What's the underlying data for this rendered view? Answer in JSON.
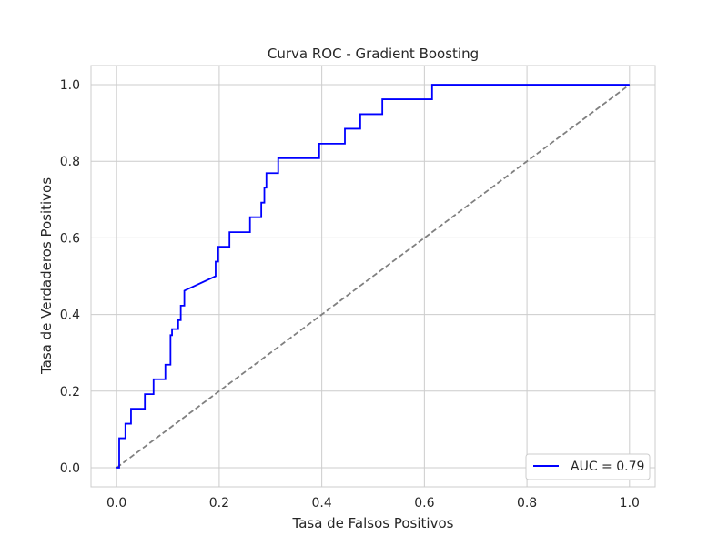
{
  "chart_data": {
    "type": "line",
    "title": "Curva ROC - Gradient Boosting",
    "xlabel": "Tasa de Falsos Positivos",
    "ylabel": "Tasa de Verdaderos Positivos",
    "xlim": [
      -0.05,
      1.05
    ],
    "ylim": [
      -0.05,
      1.05
    ],
    "xticks": [
      "0.0",
      "0.2",
      "0.4",
      "0.6",
      "0.8",
      "1.0"
    ],
    "yticks": [
      "0.0",
      "0.2",
      "0.4",
      "0.6",
      "0.8",
      "1.0"
    ],
    "grid": true,
    "legend_position": "lower-right",
    "series": [
      {
        "name": "AUC = 0.79",
        "color": "#0000ff",
        "style": "solid",
        "x": [
          0.0,
          0.005,
          0.005,
          0.017,
          0.017,
          0.028,
          0.028,
          0.055,
          0.055,
          0.072,
          0.072,
          0.095,
          0.095,
          0.105,
          0.105,
          0.108,
          0.108,
          0.12,
          0.12,
          0.125,
          0.125,
          0.132,
          0.132,
          0.193,
          0.193,
          0.198,
          0.198,
          0.22,
          0.22,
          0.26,
          0.26,
          0.275,
          0.275,
          0.282,
          0.282,
          0.288,
          0.288,
          0.292,
          0.292,
          0.315,
          0.315,
          0.325,
          0.325,
          0.395,
          0.395,
          0.445,
          0.445,
          0.475,
          0.475,
          0.518,
          0.518,
          0.61,
          0.61,
          0.615,
          0.615,
          1.0
        ],
        "y": [
          0.0,
          0.0,
          0.077,
          0.077,
          0.115,
          0.115,
          0.154,
          0.154,
          0.192,
          0.192,
          0.231,
          0.231,
          0.269,
          0.269,
          0.346,
          0.346,
          0.362,
          0.362,
          0.385,
          0.385,
          0.423,
          0.423,
          0.462,
          0.5,
          0.538,
          0.538,
          0.577,
          0.577,
          0.615,
          0.615,
          0.654,
          0.654,
          0.654,
          0.654,
          0.692,
          0.692,
          0.731,
          0.731,
          0.769,
          0.769,
          0.808,
          0.808,
          0.808,
          0.808,
          0.846,
          0.846,
          0.885,
          0.885,
          0.923,
          0.923,
          0.962,
          0.962,
          0.962,
          0.962,
          1.0,
          1.0
        ]
      },
      {
        "name": "",
        "color": "#808080",
        "style": "dashed",
        "x": [
          0.0,
          1.0
        ],
        "y": [
          0.0,
          1.0
        ]
      }
    ]
  }
}
